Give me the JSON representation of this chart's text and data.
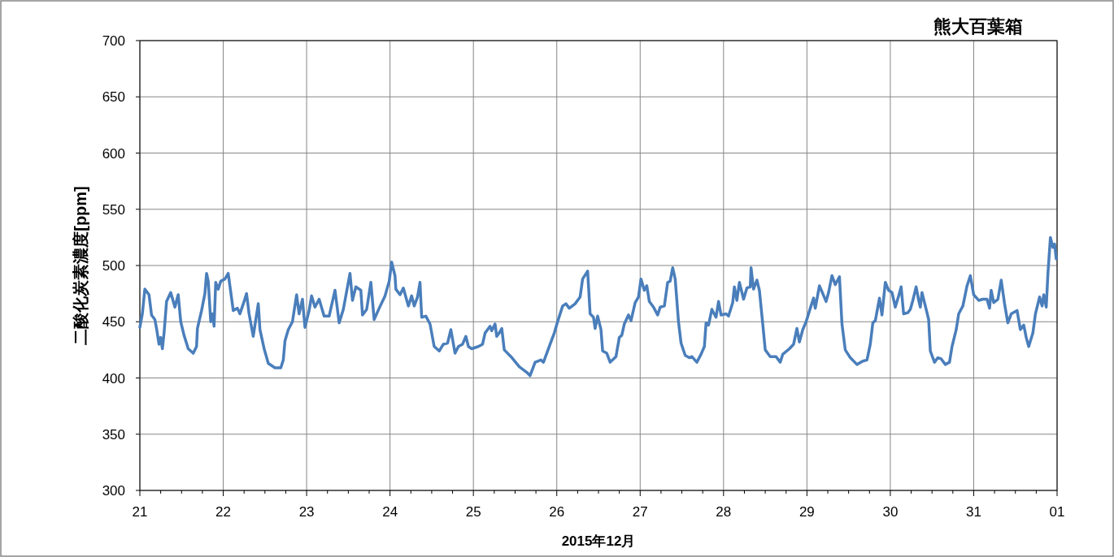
{
  "chart_data": {
    "type": "line",
    "title": "熊大百葉箱",
    "xlabel": "2015年12月",
    "ylabel": "二酸化炭素濃度[ppm]",
    "xlim": [
      "2015-12-21T00:00",
      "2016-01-01T00:00"
    ],
    "ylim": [
      300,
      700
    ],
    "yticks": [
      300,
      350,
      400,
      450,
      500,
      550,
      600,
      650,
      700
    ],
    "xticks": [
      {
        "value": "2015-12-21T00:00",
        "label": "21"
      },
      {
        "value": "2015-12-21T06:00",
        "label": null
      },
      {
        "value": "2015-12-21T12:00",
        "label": null
      },
      {
        "value": "2015-12-21T18:00",
        "label": null
      },
      {
        "value": "2015-12-22T00:00",
        "label": "22"
      },
      {
        "value": "2015-12-22T06:00",
        "label": null
      },
      {
        "value": "2015-12-22T12:00",
        "label": null
      },
      {
        "value": "2015-12-22T18:00",
        "label": null
      },
      {
        "value": "2015-12-23T00:00",
        "label": "23"
      },
      {
        "value": "2015-12-23T06:00",
        "label": null
      },
      {
        "value": "2015-12-23T12:00",
        "label": null
      },
      {
        "value": "2015-12-23T18:00",
        "label": null
      },
      {
        "value": "2015-12-24T00:00",
        "label": "24"
      },
      {
        "value": "2015-12-24T06:00",
        "label": null
      },
      {
        "value": "2015-12-24T12:00",
        "label": null
      },
      {
        "value": "2015-12-24T18:00",
        "label": null
      },
      {
        "value": "2015-12-25T00:00",
        "label": "25"
      },
      {
        "value": "2015-12-25T06:00",
        "label": null
      },
      {
        "value": "2015-12-25T12:00",
        "label": null
      },
      {
        "value": "2015-12-25T18:00",
        "label": null
      },
      {
        "value": "2015-12-26T00:00",
        "label": "26"
      },
      {
        "value": "2015-12-26T06:00",
        "label": null
      },
      {
        "value": "2015-12-26T12:00",
        "label": null
      },
      {
        "value": "2015-12-26T18:00",
        "label": null
      },
      {
        "value": "2015-12-27T00:00",
        "label": "27"
      },
      {
        "value": "2015-12-27T06:00",
        "label": null
      },
      {
        "value": "2015-12-27T12:00",
        "label": null
      },
      {
        "value": "2015-12-27T18:00",
        "label": null
      },
      {
        "value": "2015-12-28T00:00",
        "label": "28"
      },
      {
        "value": "2015-12-28T06:00",
        "label": null
      },
      {
        "value": "2015-12-28T12:00",
        "label": null
      },
      {
        "value": "2015-12-28T18:00",
        "label": null
      },
      {
        "value": "2015-12-29T00:00",
        "label": "29"
      },
      {
        "value": "2015-12-29T06:00",
        "label": null
      },
      {
        "value": "2015-12-29T12:00",
        "label": null
      },
      {
        "value": "2015-12-29T18:00",
        "label": null
      },
      {
        "value": "2015-12-30T00:00",
        "label": "30"
      },
      {
        "value": "2015-12-30T06:00",
        "label": null
      },
      {
        "value": "2015-12-30T12:00",
        "label": null
      },
      {
        "value": "2015-12-30T18:00",
        "label": null
      },
      {
        "value": "2015-12-31T00:00",
        "label": "31"
      },
      {
        "value": "2015-12-31T06:00",
        "label": null
      },
      {
        "value": "2015-12-31T12:00",
        "label": null
      },
      {
        "value": "2015-12-31T18:00",
        "label": null
      },
      {
        "value": "2016-01-01T00:00",
        "label": "01"
      }
    ],
    "grid": true,
    "marker": "none",
    "line_style": "solid",
    "series": [
      {
        "color": "#4a7ebb",
        "x": [
          "2015-12-21T00:00",
          "2015-12-21T00:43",
          "2015-12-21T01:26",
          "2015-12-21T02:38",
          "2015-12-21T03:22",
          "2015-12-21T04:19",
          "2015-12-21T04:48",
          "2015-12-21T05:31",
          "2015-12-21T06:00",
          "2015-12-21T06:29",
          "2015-12-21T06:58",
          "2015-12-21T07:41",
          "2015-12-21T08:53",
          "2015-12-21T10:05",
          "2015-12-21T11:02",
          "2015-12-21T11:46",
          "2015-12-21T12:43",
          "2015-12-21T13:55",
          "2015-12-21T15:22",
          "2015-12-21T16:19",
          "2015-12-21T16:34",
          "2015-12-21T17:46",
          "2015-12-21T18:43",
          "2015-12-21T19:12",
          "2015-12-21T19:41",
          "2015-12-21T20:24",
          "2015-12-21T20:53",
          "2015-12-21T21:22",
          "2015-12-21T21:50",
          "2015-12-21T22:34",
          "2015-12-21T23:17",
          "2015-12-22T00:29",
          "2015-12-22T01:26",
          "2015-12-22T02:53",
          "2015-12-22T04:05",
          "2015-12-22T04:48",
          "2015-12-22T06:00",
          "2015-12-22T06:43",
          "2015-12-22T07:26",
          "2015-12-22T08:38",
          "2015-12-22T10:05",
          "2015-12-22T10:34",
          "2015-12-22T11:46",
          "2015-12-22T12:58",
          "2015-12-22T14:53",
          "2015-12-22T16:34",
          "2015-12-22T17:17",
          "2015-12-22T17:46",
          "2015-12-22T18:43",
          "2015-12-22T19:55",
          "2015-12-22T21:07",
          "2015-12-22T21:50",
          "2015-12-22T22:48",
          "2015-12-22T23:31",
          "2015-12-23T00:43",
          "2015-12-23T01:26",
          "2015-12-23T02:24",
          "2015-12-23T03:36",
          "2015-12-23T05:02",
          "2015-12-23T06:29",
          "2015-12-23T08:10",
          "2015-12-23T09:22",
          "2015-12-23T10:34",
          "2015-12-23T12:29",
          "2015-12-23T13:12",
          "2015-12-23T14:10",
          "2015-12-23T15:36",
          "2015-12-23T16:05",
          "2015-12-23T17:17",
          "2015-12-23T18:29",
          "2015-12-23T19:26",
          "2015-12-23T20:53",
          "2015-12-23T22:34",
          "2015-12-23T23:46",
          "2015-12-24T00:29",
          "2015-12-24T01:26",
          "2015-12-24T01:41",
          "2015-12-24T02:53",
          "2015-12-24T03:50",
          "2015-12-24T05:17",
          "2015-12-24T06:14",
          "2015-12-24T06:58",
          "2015-12-24T07:55",
          "2015-12-24T08:38",
          "2015-12-24T09:07",
          "2015-12-24T10:19",
          "2015-12-24T11:31",
          "2015-12-24T12:43",
          "2015-12-24T14:10",
          "2015-12-24T15:22",
          "2015-12-24T16:34",
          "2015-12-24T17:31",
          "2015-12-24T18:43",
          "2015-12-24T19:41",
          "2015-12-24T20:53",
          "2015-12-24T21:50",
          "2015-12-24T22:34",
          "2015-12-24T23:31",
          "2015-12-25T01:26",
          "2015-12-25T02:38",
          "2015-12-25T03:22",
          "2015-12-25T04:48",
          "2015-12-25T05:17",
          "2015-12-25T06:14",
          "2015-12-25T06:43",
          "2015-12-25T07:26",
          "2015-12-25T08:10",
          "2015-12-25T08:53",
          "2015-12-25T10:48",
          "2015-12-25T13:12",
          "2015-12-25T15:22",
          "2015-12-25T16:19",
          "2015-12-25T17:46",
          "2015-12-25T19:26",
          "2015-12-25T20:10",
          "2015-12-25T21:07",
          "2015-12-25T22:05",
          "2015-12-25T23:17",
          "2015-12-26T00:14",
          "2015-12-26T01:41",
          "2015-12-26T02:38",
          "2015-12-26T03:36",
          "2015-12-26T05:17",
          "2015-12-26T06:43",
          "2015-12-26T07:26",
          "2015-12-26T08:53",
          "2015-12-26T09:36",
          "2015-12-26T10:34",
          "2015-12-26T11:02",
          "2015-12-26T11:46",
          "2015-12-26T12:43",
          "2015-12-26T13:12",
          "2015-12-26T14:24",
          "2015-12-26T15:22",
          "2015-12-26T17:02",
          "2015-12-26T18:00",
          "2015-12-26T18:43",
          "2015-12-26T19:26",
          "2015-12-26T20:38",
          "2015-12-26T21:22",
          "2015-12-26T22:34",
          "2015-12-26T23:31",
          "2015-12-27T00:14",
          "2015-12-27T01:12",
          "2015-12-27T01:55",
          "2015-12-27T02:38",
          "2015-12-27T03:50",
          "2015-12-27T05:02",
          "2015-12-27T05:46",
          "2015-12-27T06:58",
          "2015-12-27T07:55",
          "2015-12-27T08:38",
          "2015-12-27T09:22",
          "2015-12-27T10:05",
          "2015-12-27T11:02",
          "2015-12-27T11:46",
          "2015-12-27T12:58",
          "2015-12-27T14:10",
          "2015-12-27T14:53",
          "2015-12-27T16:19",
          "2015-12-27T17:31",
          "2015-12-27T18:29",
          "2015-12-27T18:58",
          "2015-12-27T19:41",
          "2015-12-27T20:38",
          "2015-12-27T21:50",
          "2015-12-27T22:34",
          "2015-12-27T23:17",
          "2015-12-28T00:43",
          "2015-12-28T01:26",
          "2015-12-28T02:38",
          "2015-12-28T03:07",
          "2015-12-28T03:50",
          "2015-12-28T04:34",
          "2015-12-28T05:46",
          "2015-12-28T06:43",
          "2015-12-28T07:41",
          "2015-12-28T07:55",
          "2015-12-28T08:38",
          "2015-12-28T09:36",
          "2015-12-28T10:19",
          "2015-12-28T11:17",
          "2015-12-28T12:00",
          "2015-12-28T13:26",
          "2015-12-28T15:07",
          "2015-12-28T16:19",
          "2015-12-28T17:02",
          "2015-12-28T18:58",
          "2015-12-28T20:10",
          "2015-12-28T21:07",
          "2015-12-28T21:50",
          "2015-12-28T22:48",
          "2015-12-28T23:46",
          "2015-12-29T00:58",
          "2015-12-29T01:55",
          "2015-12-29T02:24",
          "2015-12-29T03:36",
          "2015-12-29T04:34",
          "2015-12-29T05:31",
          "2015-12-29T06:14",
          "2015-12-29T07:12",
          "2015-12-29T08:10",
          "2015-12-29T09:22",
          "2015-12-29T10:05",
          "2015-12-29T11:02",
          "2015-12-29T12:29",
          "2015-12-29T14:24",
          "2015-12-29T16:05",
          "2015-12-29T17:17",
          "2015-12-29T18:14",
          "2015-12-29T18:58",
          "2015-12-29T19:41",
          "2015-12-29T20:53",
          "2015-12-29T21:36",
          "2015-12-29T22:34",
          "2015-12-29T23:31",
          "2015-12-30T00:29",
          "2015-12-30T01:26",
          "2015-12-30T02:24",
          "2015-12-30T03:07",
          "2015-12-30T03:50",
          "2015-12-30T05:02",
          "2015-12-30T05:46",
          "2015-12-30T06:29",
          "2015-12-30T07:26",
          "2015-12-30T08:10",
          "2015-12-30T08:38",
          "2015-12-30T09:07",
          "2015-12-30T10:05",
          "2015-12-30T11:02",
          "2015-12-30T11:31",
          "2015-12-30T12:43",
          "2015-12-30T13:41",
          "2015-12-30T14:38",
          "2015-12-30T15:50",
          "2015-12-30T17:02",
          "2015-12-30T17:46",
          "2015-12-30T18:58",
          "2015-12-30T19:41",
          "2015-12-30T20:53",
          "2015-12-30T22:05",
          "2015-12-30T23:02",
          "2015-12-31T00:00",
          "2015-12-31T01:26",
          "2015-12-31T02:38",
          "2015-12-31T03:50",
          "2015-12-31T04:34",
          "2015-12-31T05:02",
          "2015-12-31T05:46",
          "2015-12-31T06:58",
          "2015-12-31T07:55",
          "2015-12-31T08:53",
          "2015-12-31T09:50",
          "2015-12-31T10:48",
          "2015-12-31T12:29",
          "2015-12-31T13:26",
          "2015-12-31T14:24",
          "2015-12-31T15:07",
          "2015-12-31T15:50",
          "2015-12-31T17:02",
          "2015-12-31T17:46",
          "2015-12-31T18:58",
          "2015-12-31T19:41",
          "2015-12-31T20:10",
          "2015-12-31T20:53",
          "2015-12-31T21:22",
          "2015-12-31T22:05",
          "2015-12-31T22:48",
          "2015-12-31T23:17",
          "2015-12-31T23:46"
        ],
        "values": [
          445,
          457,
          479,
          474,
          456,
          452,
          444,
          430,
          436,
          426,
          440,
          468,
          476,
          463,
          474,
          450,
          438,
          426,
          422,
          428,
          444,
          460,
          475,
          493,
          486,
          450,
          457,
          446,
          485,
          479,
          486,
          488,
          493,
          460,
          462,
          457,
          468,
          475,
          457,
          437,
          466,
          443,
          426,
          413,
          409,
          409,
          416,
          433,
          443,
          450,
          474,
          457,
          470,
          445,
          460,
          473,
          463,
          470,
          455,
          455,
          478,
          449,
          461,
          493,
          469,
          481,
          478,
          456,
          461,
          485,
          452,
          462,
          473,
          486,
          503,
          491,
          479,
          474,
          480,
          464,
          473,
          464,
          472,
          485,
          454,
          455,
          448,
          428,
          424,
          430,
          431,
          443,
          422,
          428,
          430,
          437,
          428,
          426,
          428,
          430,
          440,
          446,
          442,
          448,
          437,
          440,
          444,
          425,
          419,
          410,
          405,
          402,
          414,
          416,
          414,
          422,
          430,
          440,
          450,
          464,
          466,
          462,
          466,
          472,
          488,
          495,
          457,
          454,
          444,
          455,
          443,
          424,
          422,
          414,
          419,
          436,
          438,
          448,
          456,
          451,
          467,
          472,
          488,
          478,
          482,
          468,
          463,
          456,
          463,
          464,
          485,
          486,
          498,
          488,
          450,
          431,
          420,
          418,
          419,
          414,
          421,
          428,
          449,
          447,
          461,
          454,
          468,
          456,
          457,
          455,
          467,
          481,
          469,
          485,
          470,
          480,
          481,
          498,
          479,
          487,
          478,
          448,
          425,
          419,
          419,
          414,
          421,
          426,
          430,
          444,
          432,
          443,
          450,
          462,
          471,
          462,
          482,
          475,
          468,
          476,
          491,
          483,
          490,
          448,
          425,
          418,
          412,
          415,
          416,
          430,
          449,
          451,
          471,
          456,
          485,
          478,
          476,
          463,
          473,
          481,
          457,
          458,
          461,
          469,
          481,
          469,
          463,
          476,
          464,
          452,
          424,
          414,
          418,
          417,
          412,
          414,
          428,
          443,
          457,
          464,
          482,
          491,
          474,
          469,
          470,
          470,
          462,
          478,
          467,
          470,
          487,
          466,
          449,
          457,
          460,
          443,
          447,
          436,
          428,
          440,
          457,
          472,
          464,
          474,
          463,
          493,
          525,
          516,
          519,
          506
        ]
      }
    ]
  }
}
